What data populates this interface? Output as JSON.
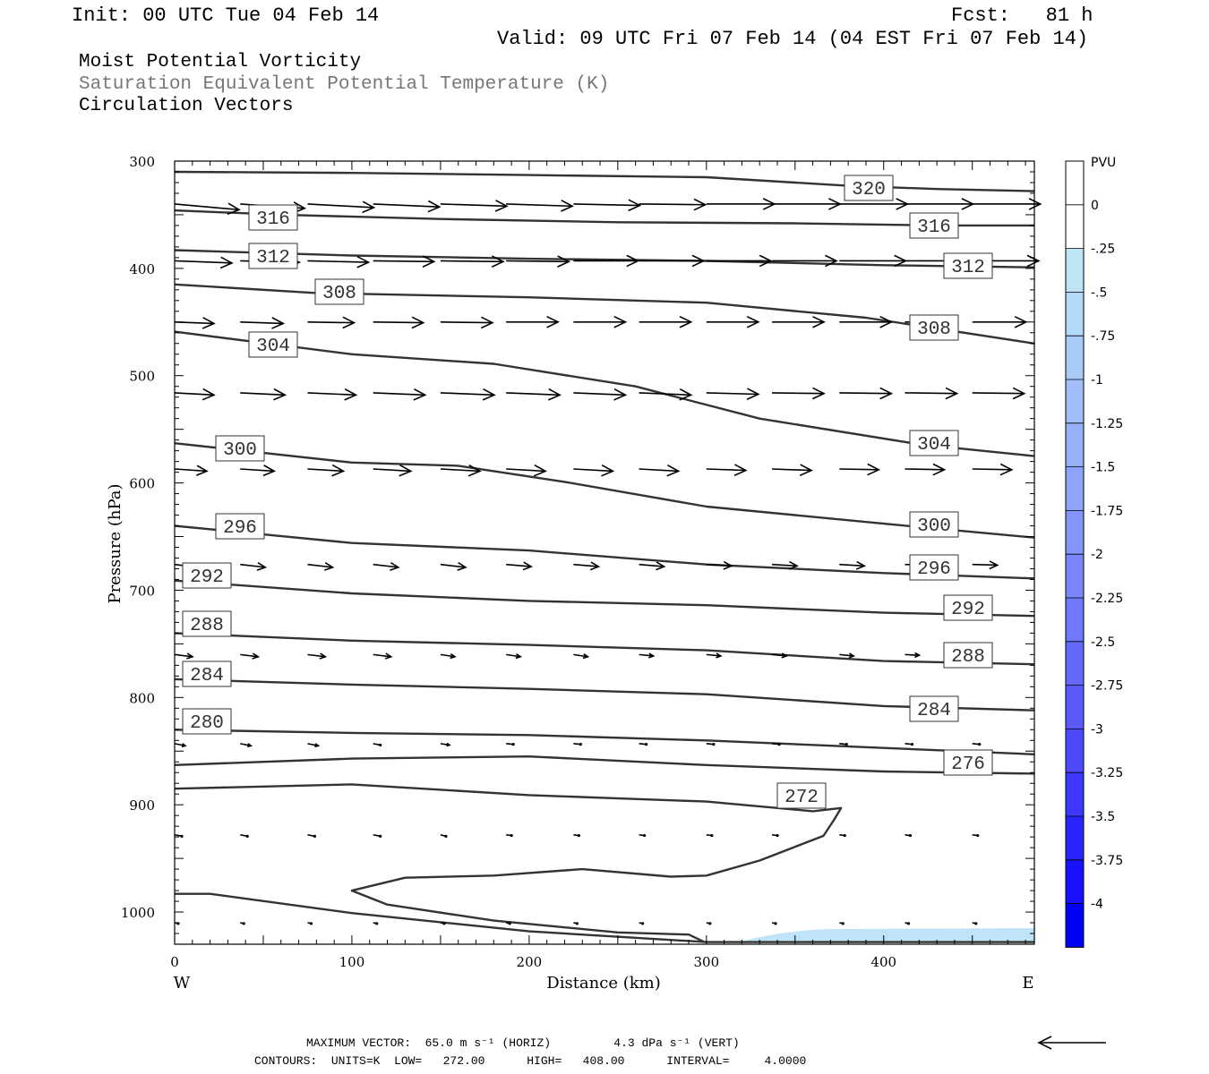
{
  "header": {
    "init": "Init: 00 UTC Tue 04 Feb 14",
    "fcst": "Fcst:   81 h",
    "valid": "Valid: 09 UTC Fri 07 Feb 14 (04 EST Fri 07 Feb 14)"
  },
  "titles": {
    "line1": "Moist Potential Vorticity",
    "line2": "Saturation Equivalent Potential Temperature (K)",
    "line3": "Circulation Vectors"
  },
  "footer": {
    "line1": "MAXIMUM VECTOR:  65.0 m s⁻¹ (HORIZ)         4.3 dPa s⁻¹ (VERT)",
    "line2": "CONTOURS:  UNITS=K  LOW=   272.00      HIGH=   408.00      INTERVAL=     4.0000"
  },
  "colors": {
    "contour": "#333333",
    "pv_fill": "#bfe4f8",
    "colorbar_top": "#ffffff",
    "colorbar_bottom": "#0000ff"
  },
  "chart_data": {
    "type": "contour",
    "xlabel": "Distance (km)",
    "ylabel": "Pressure (hPa)",
    "xlim": [
      0,
      485
    ],
    "ylim": [
      300,
      1030
    ],
    "x_ticks": [
      "0",
      "100",
      "200",
      "300",
      "400"
    ],
    "x_tick_values": [
      0,
      100,
      200,
      300,
      400
    ],
    "y_ticks": [
      "300",
      "400",
      "500",
      "600",
      "700",
      "800",
      "900",
      "1000"
    ],
    "y_tick_values": [
      300,
      400,
      500,
      600,
      700,
      800,
      900,
      1000
    ],
    "x_end_left": "W",
    "x_end_right": "E",
    "contours": [
      {
        "level": 320,
        "label": "320",
        "label_at": [
          0,
          1
        ],
        "points": [
          [
            0,
            310
          ],
          [
            100,
            311
          ],
          [
            200,
            313
          ],
          [
            300,
            315
          ],
          [
            380,
            323
          ],
          [
            430,
            326
          ],
          [
            485,
            328
          ]
        ]
      },
      {
        "level": 316,
        "label": "316",
        "label_at": [
          0,
          1
        ],
        "points": [
          [
            0,
            346
          ],
          [
            60,
            350
          ],
          [
            150,
            354
          ],
          [
            250,
            357
          ],
          [
            350,
            358
          ],
          [
            430,
            360
          ],
          [
            485,
            360
          ]
        ]
      },
      {
        "level": 316,
        "label": "316",
        "label_at": [
          0,
          1
        ],
        "points": [
          [
            60,
            350
          ]
        ]
      },
      {
        "level": 312,
        "label": "312",
        "label_at": [
          0,
          1
        ],
        "points": [
          [
            0,
            383
          ],
          [
            100,
            388
          ],
          [
            200,
            391
          ],
          [
            300,
            393
          ],
          [
            400,
            397
          ],
          [
            485,
            399
          ]
        ]
      },
      {
        "level": 312,
        "label": "312",
        "label_at": [
          0,
          1
        ],
        "points": [
          [
            445,
            399
          ]
        ]
      },
      {
        "level": 308,
        "label": "308",
        "label_at": [
          0,
          1
        ],
        "points": [
          [
            0,
            415
          ],
          [
            80,
            423
          ],
          [
            200,
            427
          ],
          [
            300,
            432
          ],
          [
            390,
            446
          ],
          [
            485,
            470
          ]
        ]
      },
      {
        "level": 308,
        "label": "308",
        "label_at": [
          0,
          1
        ],
        "points": [
          [
            425,
            459
          ]
        ]
      },
      {
        "level": 304,
        "label": "304",
        "label_at": [
          0,
          1
        ],
        "points": [
          [
            0,
            459
          ],
          [
            100,
            480
          ],
          [
            180,
            489
          ],
          [
            260,
            510
          ],
          [
            330,
            540
          ],
          [
            420,
            564
          ],
          [
            485,
            575
          ]
        ]
      },
      {
        "level": 304,
        "label": "304",
        "label_at": [
          0,
          1
        ],
        "points": [
          [
            425,
            565
          ]
        ]
      },
      {
        "level": 300,
        "label": "300",
        "label_at": [
          0,
          1
        ],
        "points": [
          [
            0,
            563
          ],
          [
            100,
            581
          ],
          [
            160,
            584
          ],
          [
            220,
            599
          ],
          [
            300,
            622
          ],
          [
            400,
            638
          ],
          [
            485,
            651
          ]
        ]
      },
      {
        "level": 300,
        "label": "300",
        "label_at": [
          0,
          1
        ],
        "points": [
          [
            425,
            643
          ]
        ]
      },
      {
        "level": 296,
        "label": "296",
        "label_at": [
          0,
          1
        ],
        "points": [
          [
            0,
            640
          ],
          [
            100,
            656
          ],
          [
            200,
            663
          ],
          [
            300,
            676
          ],
          [
            400,
            684
          ],
          [
            485,
            689
          ]
        ]
      },
      {
        "level": 296,
        "label": "296",
        "label_at": [
          0,
          1
        ],
        "points": [
          [
            425,
            683
          ]
        ]
      },
      {
        "level": 292,
        "label": "292",
        "label_at": [
          0,
          1
        ],
        "points": [
          [
            0,
            691
          ],
          [
            100,
            703
          ],
          [
            200,
            710
          ],
          [
            300,
            714
          ],
          [
            400,
            721
          ],
          [
            485,
            724
          ]
        ]
      },
      {
        "level": 292,
        "label": "292",
        "label_at": [
          0,
          1
        ],
        "points": [
          [
            445,
            721
          ]
        ]
      },
      {
        "level": 288,
        "label": "288",
        "label_at": [
          0,
          1
        ],
        "points": [
          [
            0,
            740
          ],
          [
            100,
            747
          ],
          [
            200,
            751
          ],
          [
            300,
            756
          ],
          [
            400,
            766
          ],
          [
            485,
            769
          ]
        ]
      },
      {
        "level": 288,
        "label": "288",
        "label_at": [
          0,
          1
        ],
        "points": [
          [
            445,
            766
          ]
        ]
      },
      {
        "level": 284,
        "label": "284",
        "label_at": [
          0,
          1
        ],
        "points": [
          [
            0,
            783
          ],
          [
            100,
            788
          ],
          [
            200,
            792
          ],
          [
            300,
            797
          ],
          [
            400,
            808
          ],
          [
            485,
            812
          ]
        ]
      },
      {
        "level": 284,
        "label": "284",
        "label_at": [
          0,
          1
        ],
        "points": [
          [
            425,
            807
          ]
        ]
      },
      {
        "level": 280,
        "label": "280",
        "label_at": [
          0,
          1
        ],
        "points": [
          [
            0,
            830
          ],
          [
            100,
            833
          ],
          [
            200,
            835
          ],
          [
            300,
            840
          ],
          [
            400,
            847
          ],
          [
            485,
            853
          ]
        ]
      },
      {
        "level": 276,
        "label": "276",
        "label_at": [
          0,
          1
        ],
        "points": [
          [
            0,
            863
          ],
          [
            100,
            857
          ],
          [
            200,
            855
          ],
          [
            300,
            863
          ],
          [
            400,
            869
          ],
          [
            485,
            871
          ]
        ]
      },
      {
        "level": 276,
        "label": "276",
        "label_at": [
          0,
          1
        ],
        "points": [
          [
            445,
            871
          ]
        ]
      },
      {
        "level": 272,
        "label": "272",
        "label_at": [
          0,
          1
        ],
        "points": [
          [
            0,
            885
          ],
          [
            100,
            881
          ],
          [
            200,
            891
          ],
          [
            300,
            897
          ],
          [
            360,
            906
          ],
          [
            376,
            903
          ],
          [
            372,
            914
          ],
          [
            366,
            929
          ],
          [
            330,
            952
          ],
          [
            300,
            966
          ],
          [
            280,
            967
          ],
          [
            230,
            960
          ],
          [
            180,
            966
          ],
          [
            130,
            968
          ],
          [
            100,
            980
          ],
          [
            120,
            993
          ],
          [
            180,
            1008
          ],
          [
            250,
            1019
          ],
          [
            290,
            1021
          ],
          [
            299,
            1028
          ]
        ]
      },
      {
        "level": 272,
        "label": "272",
        "label_at": [
          0,
          1
        ],
        "points": [
          [
            0,
            983
          ],
          [
            20,
            983
          ],
          [
            100,
            1001
          ],
          [
            200,
            1018
          ],
          [
            300,
            1028
          ],
          [
            485,
            1028
          ]
        ]
      }
    ],
    "pv_fill_region": {
      "x_start": 318,
      "x_end": 485,
      "p_top": 1015,
      "p_bottom": 1028
    },
    "colorbar": {
      "title": "PVU",
      "labels": [
        "0",
        "-.25",
        "-.5",
        "-.75",
        "-1",
        "-1.25",
        "-1.5",
        "-1.75",
        "-2",
        "-2.25",
        "-2.5",
        "-2.75",
        "-3",
        "-3.25",
        "-3.5",
        "-3.75",
        "-4"
      ],
      "colors": [
        "#ffffff",
        "#ffffff",
        "#bfe4f8",
        "#b4d8f8",
        "#aacbf8",
        "#a1befa",
        "#97b0fa",
        "#8ea3fb",
        "#8496fb",
        "#7a87fc",
        "#7079fc",
        "#656afd",
        "#5a5afd",
        "#4d4afe",
        "#3e38fe",
        "#2c24fe",
        "#1810ff",
        "#0000ff"
      ]
    },
    "vectors": [
      {
        "y": 340,
        "x": [
          0,
          37,
          75,
          112,
          150,
          187,
          225,
          262,
          300,
          337,
          375,
          412,
          450
        ],
        "u": [
          36,
          36,
          37,
          37,
          37,
          37,
          37,
          37,
          38,
          38,
          38,
          38,
          38
        ],
        "w": [
          0.8,
          0.6,
          0.5,
          0.4,
          0.3,
          0.3,
          0.2,
          0.1,
          0,
          0,
          0,
          0,
          0
        ]
      },
      {
        "y": 393,
        "x": [
          0,
          37,
          75,
          112,
          150,
          187,
          225,
          262,
          300,
          337,
          375,
          412,
          450
        ],
        "u": [
          32,
          33,
          34,
          34,
          35,
          35,
          36,
          36,
          36,
          36,
          37,
          37,
          37
        ],
        "w": [
          0.3,
          0.2,
          0.2,
          0.1,
          0.1,
          0.1,
          0,
          0,
          0,
          0,
          0,
          0,
          0
        ]
      },
      {
        "y": 450,
        "x": [
          0,
          37,
          75,
          112,
          150,
          187,
          225,
          262,
          300,
          337,
          375,
          412,
          450
        ],
        "u": [
          22,
          24,
          26,
          28,
          29,
          29,
          29,
          29,
          29,
          29,
          29,
          29,
          30
        ],
        "w": [
          0.2,
          0.2,
          0.1,
          0.1,
          0.1,
          0,
          0,
          0,
          0,
          0,
          0,
          0,
          0
        ]
      },
      {
        "y": 516,
        "x": [
          0,
          37,
          75,
          112,
          150,
          187,
          225,
          262,
          300,
          337,
          375,
          412,
          450
        ],
        "u": [
          22,
          25,
          27,
          29,
          30,
          30,
          29,
          29,
          29,
          29,
          29,
          29,
          29
        ],
        "w": [
          0.3,
          0.3,
          0.3,
          0.3,
          0.3,
          0.3,
          0.3,
          0.3,
          0.2,
          0.1,
          0.1,
          0.1,
          0.1
        ]
      },
      {
        "y": 587,
        "x": [
          0,
          37,
          75,
          112,
          150,
          187,
          225,
          262,
          300,
          337,
          375,
          412,
          450
        ],
        "u": [
          18,
          19,
          20,
          21,
          22,
          22,
          22,
          22,
          22,
          22,
          22,
          22,
          22
        ],
        "w": [
          0.3,
          0.3,
          0.3,
          0.3,
          0.3,
          0.3,
          0.3,
          0.3,
          0.2,
          0.2,
          0.1,
          0.1,
          0.1
        ]
      },
      {
        "y": 676,
        "x": [
          0,
          37,
          75,
          112,
          150,
          187,
          225,
          262,
          300,
          337,
          375,
          412,
          450
        ],
        "u": [
          13,
          14,
          14,
          14,
          14,
          14,
          14,
          14,
          14,
          14,
          14,
          14,
          14
        ],
        "w": [
          0.4,
          0.4,
          0.4,
          0.4,
          0.4,
          0.3,
          0.3,
          0.3,
          0.2,
          0.2,
          0.2,
          0.1,
          0.1
        ]
      },
      {
        "y": 760,
        "x": [
          0,
          37,
          75,
          112,
          150,
          187,
          225,
          262,
          300,
          337,
          375,
          412,
          450
        ],
        "u": [
          10,
          10,
          10,
          10,
          8,
          8,
          8,
          8,
          8,
          8,
          8,
          8,
          8
        ],
        "w": [
          0.3,
          0.3,
          0.3,
          0.3,
          0.3,
          0.3,
          0.3,
          0.2,
          0.2,
          0.2,
          0.2,
          0.1,
          0.1
        ]
      },
      {
        "y": 843,
        "x": [
          0,
          37,
          75,
          112,
          150,
          187,
          225,
          262,
          300,
          337,
          375,
          412,
          450
        ],
        "u": [
          6,
          6,
          6,
          4,
          5,
          4,
          4,
          4,
          4,
          4,
          4,
          4,
          4
        ],
        "w": [
          0.3,
          0.3,
          0.3,
          0.2,
          0.2,
          0.1,
          0.1,
          0.1,
          0.1,
          0.1,
          0.1,
          0.1,
          0.1
        ]
      },
      {
        "y": 928,
        "x": [
          0,
          37,
          75,
          112,
          150,
          187,
          225,
          262,
          300,
          337,
          375,
          412,
          450
        ],
        "u": [
          4,
          4,
          4,
          4,
          3,
          3,
          3,
          3,
          3,
          3,
          3,
          3,
          3
        ],
        "w": [
          0.2,
          0.2,
          0.2,
          0.2,
          0.2,
          0.1,
          0.1,
          0.1,
          0.1,
          0.1,
          0.1,
          0.1,
          0.1
        ]
      },
      {
        "y": 1010,
        "x": [
          0,
          37,
          75,
          112,
          150,
          187,
          225,
          262,
          300,
          337,
          375,
          412,
          450
        ],
        "u": [
          2,
          2,
          2,
          2,
          2,
          2,
          2,
          2,
          2,
          2,
          2,
          2,
          2
        ],
        "w": [
          0.1,
          0.1,
          0.1,
          0.1,
          0.1,
          0.1,
          0.1,
          0.1,
          0.1,
          0.1,
          0.1,
          0.1,
          0.1
        ]
      }
    ]
  }
}
